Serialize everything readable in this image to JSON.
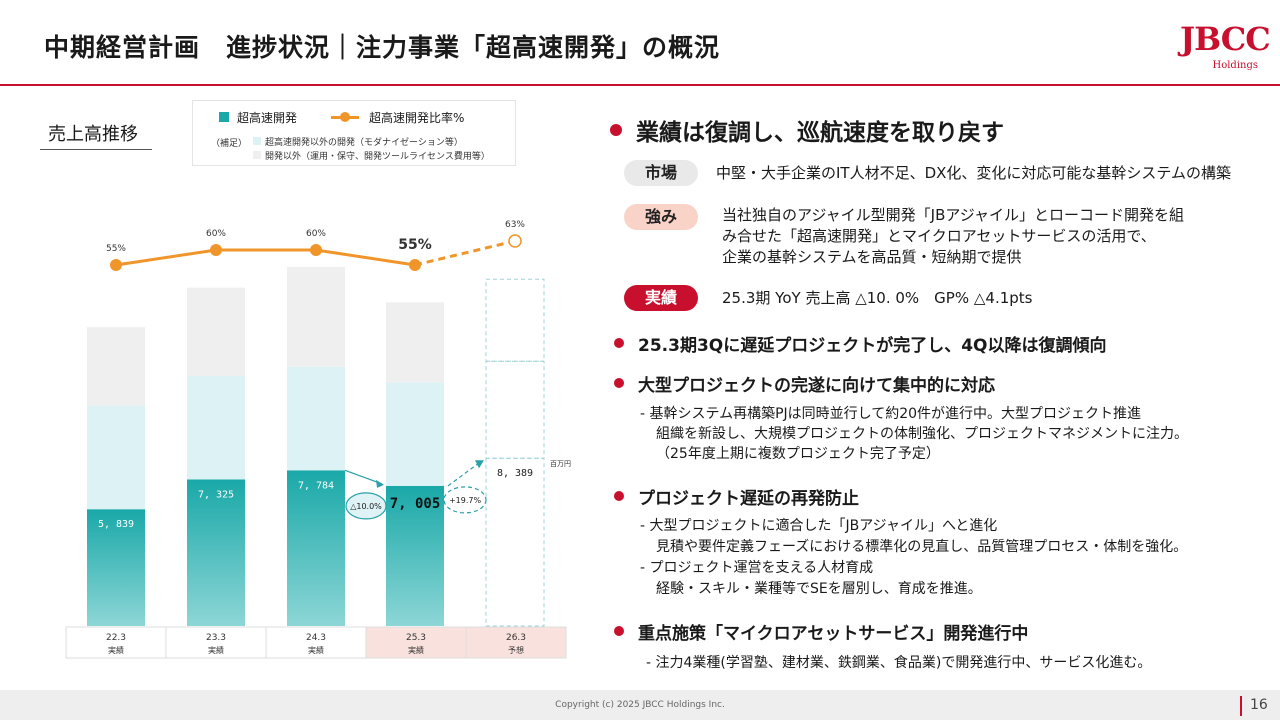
{
  "header": {
    "title": "中期経営計画　進捗状況｜注力事業「超高速開発」の概況",
    "logo_text": "JBCC",
    "logo_sub": "Holdings"
  },
  "left": {
    "section_title": "売上高推移",
    "legend": {
      "item1": "超高速開発",
      "item2": "超高速開発比率%",
      "note_prefix": "（補足）",
      "note1": "超高速開発以外の開発（モダナイゼーション等）",
      "note2": "開発以外（運用・保守、開発ツールライセンス費用等）"
    }
  },
  "chart_data": {
    "type": "bar",
    "categories": [
      "22.3",
      "23.3",
      "24.3",
      "25.3",
      "26.3"
    ],
    "category_labels": [
      "実績",
      "実績",
      "実績",
      "実績",
      "予想"
    ],
    "series": [
      {
        "name": "超高速開発",
        "values": [
          5839,
          7325,
          7784,
          7005,
          8389
        ],
        "labels": [
          "5, 839",
          "7, 325",
          "7, 784",
          "7, 005",
          "8, 389"
        ]
      },
      {
        "name": "超高速開発以外の開発（モダナイゼーション等）",
        "values": [
          5180,
          5180,
          5180,
          5180,
          null
        ]
      },
      {
        "name": "開発以外（運用・保守、開発ツールライセンス費用等）",
        "values": [
          3920,
          4410,
          4990,
          4000,
          null
        ]
      }
    ],
    "ratio_series": {
      "name": "超高速開発比率%",
      "values": [
        55,
        60,
        60,
        55,
        63
      ],
      "labels": [
        "55%",
        "60%",
        "60%",
        "55%",
        "63%"
      ]
    },
    "unit": "百万円",
    "annotations": {
      "yoy_25": "△10.0%",
      "yoy_26": "+19.7%"
    },
    "colors": {
      "main": "#1aa8a8",
      "main_light": "#8dd6d6",
      "other_dev": "#dcf2f4",
      "non_dev": "#efefef",
      "line": "#f0952a",
      "forecast_border": "#9fd3d8",
      "accent": "#c8102e"
    }
  },
  "right": {
    "heading": "業績は復調し、巡航速度を取り戻す",
    "market_label": "市場",
    "market_text": "中堅・大手企業のIT人材不足、DX化、変化に対応可能な基幹システムの構築",
    "strength_label": "強み",
    "strength_lines": [
      "当社独自のアジャイル型開発「JBアジャイル」とローコード開発を組",
      "み合せた「超高速開発」とマイクロアセットサービスの活用で、",
      "企業の基幹システムを高品質・短納期で提供"
    ],
    "result_label": "実績",
    "result_text": "25.3期 YoY  売上高 △10. 0%　GP% △4.1pts",
    "b1": "25.3期3Qに遅延プロジェクトが完了し、4Q以降は復調傾向",
    "b2": "大型プロジェクトの完遂に向けて集中的に対応",
    "b2_lines": [
      "- 基幹システム再構築PJは同時並行して約20件が進行中。大型プロジェクト推進",
      "組織を新設し、大規模プロジェクトの体制強化、プロジェクトマネジメントに注力。",
      "（25年度上期に複数プロジェクト完了予定）"
    ],
    "b3": "プロジェクト遅延の再発防止",
    "b3_lines": [
      "- 大型プロジェクトに適合した「JBアジャイル」へと進化",
      "見積や要件定義フェーズにおける標準化の見直し、品質管理プロセス・体制を強化。",
      "- プロジェクト運営を支える人材育成",
      "経験・スキル・業種等でSEを層別し、育成を推進。"
    ],
    "b4": "重点施策「マイクロアセットサービス」開発進行中",
    "b4_lines": [
      "- 注力4業種(学習塾、建材業、鉄鋼業、食品業)で開発進行中、サービス化進む。"
    ]
  },
  "footer": {
    "copyright": "Copyright (c) 2025 JBCC Holdings Inc.",
    "page": "16"
  }
}
